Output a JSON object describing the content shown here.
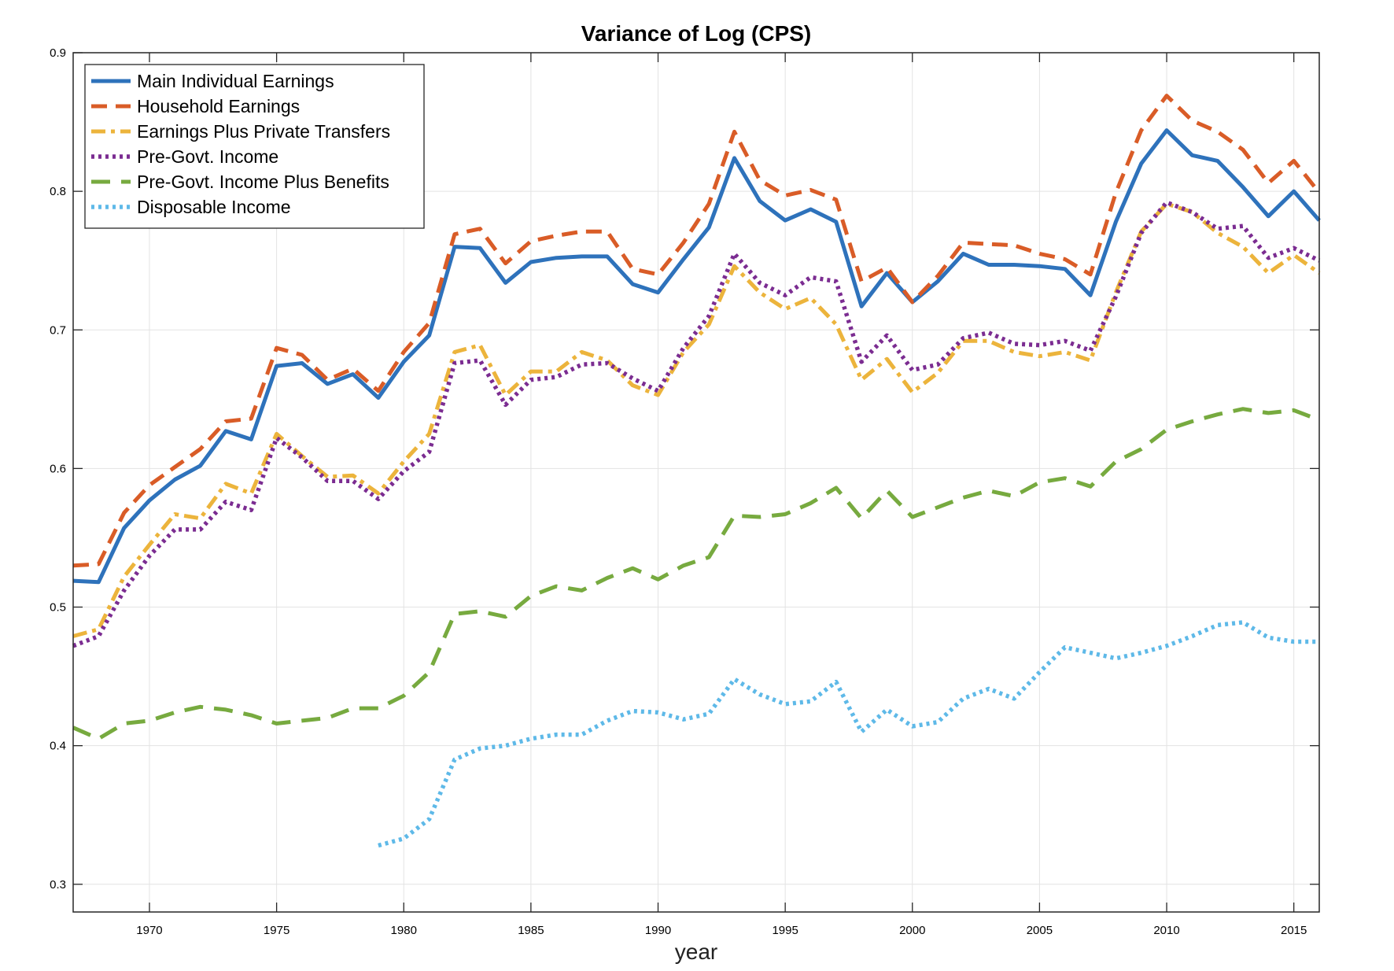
{
  "chart_data": {
    "type": "line",
    "title": "Variance of Log (CPS)",
    "xlabel": "year",
    "ylabel": "",
    "xlim": [
      1967,
      2016
    ],
    "ylim": [
      0.28,
      0.9
    ],
    "xticks": [
      1970,
      1975,
      1980,
      1985,
      1990,
      1995,
      2000,
      2005,
      2010,
      2015
    ],
    "yticks": [
      0.3,
      0.4,
      0.5,
      0.6,
      0.7,
      0.8,
      0.9
    ],
    "grid": true,
    "legend_position": "top-left",
    "series": [
      {
        "name": "Main Individual Earnings",
        "color": "#2e72bb",
        "style": "solid",
        "x": [
          1967,
          1968,
          1969,
          1970,
          1971,
          1972,
          1973,
          1974,
          1975,
          1976,
          1977,
          1978,
          1979,
          1980,
          1981,
          1982,
          1983,
          1984,
          1985,
          1986,
          1987,
          1988,
          1989,
          1990,
          1991,
          1992,
          1993,
          1994,
          1995,
          1996,
          1997,
          1998,
          1999,
          2000,
          2001,
          2002,
          2003,
          2004,
          2005,
          2006,
          2007,
          2008,
          2009,
          2010,
          2011,
          2012,
          2013,
          2014,
          2015,
          2016
        ],
        "y": [
          0.519,
          0.518,
          0.557,
          0.577,
          0.592,
          0.602,
          0.627,
          0.621,
          0.674,
          0.676,
          0.661,
          0.668,
          0.651,
          0.677,
          0.696,
          0.76,
          0.759,
          0.734,
          0.749,
          0.752,
          0.753,
          0.753,
          0.733,
          0.727,
          0.751,
          0.774,
          0.824,
          0.793,
          0.779,
          0.787,
          0.778,
          0.717,
          0.741,
          0.72,
          0.735,
          0.755,
          0.747,
          0.747,
          0.746,
          0.744,
          0.725,
          0.778,
          0.82,
          0.844,
          0.826,
          0.822,
          0.803,
          0.782,
          0.8,
          0.779
        ]
      },
      {
        "name": "Household Earnings",
        "color": "#d95c27",
        "style": "dashed",
        "x": [
          1967,
          1968,
          1969,
          1970,
          1971,
          1972,
          1973,
          1974,
          1975,
          1976,
          1977,
          1978,
          1979,
          1980,
          1981,
          1982,
          1983,
          1984,
          1985,
          1986,
          1987,
          1988,
          1989,
          1990,
          1991,
          1992,
          1993,
          1994,
          1995,
          1996,
          1997,
          1998,
          1999,
          2000,
          2001,
          2002,
          2003,
          2004,
          2005,
          2006,
          2007,
          2008,
          2009,
          2010,
          2011,
          2012,
          2013,
          2014,
          2015,
          2016
        ],
        "y": [
          0.53,
          0.531,
          0.568,
          0.588,
          0.601,
          0.614,
          0.634,
          0.636,
          0.687,
          0.682,
          0.664,
          0.672,
          0.656,
          0.684,
          0.705,
          0.769,
          0.773,
          0.748,
          0.764,
          0.768,
          0.771,
          0.771,
          0.744,
          0.74,
          0.763,
          0.791,
          0.843,
          0.808,
          0.797,
          0.801,
          0.794,
          0.735,
          0.745,
          0.72,
          0.739,
          0.763,
          0.762,
          0.761,
          0.755,
          0.751,
          0.74,
          0.799,
          0.844,
          0.869,
          0.851,
          0.843,
          0.83,
          0.806,
          0.822,
          0.799
        ]
      },
      {
        "name": "Earnings Plus Private Transfers",
        "color": "#ecb43c",
        "style": "dashdot",
        "x": [
          1967,
          1968,
          1969,
          1970,
          1971,
          1972,
          1973,
          1974,
          1975,
          1976,
          1977,
          1978,
          1979,
          1980,
          1981,
          1982,
          1983,
          1984,
          1985,
          1986,
          1987,
          1988,
          1989,
          1990,
          1991,
          1992,
          1993,
          1994,
          1995,
          1996,
          1997,
          1998,
          1999,
          2000,
          2001,
          2002,
          2003,
          2004,
          2005,
          2006,
          2007,
          2008,
          2009,
          2010,
          2011,
          2012,
          2013,
          2014,
          2015,
          2016
        ],
        "y": [
          0.479,
          0.484,
          0.522,
          0.545,
          0.567,
          0.564,
          0.589,
          0.582,
          0.625,
          0.609,
          0.594,
          0.595,
          0.582,
          0.605,
          0.625,
          0.684,
          0.689,
          0.653,
          0.67,
          0.67,
          0.684,
          0.678,
          0.66,
          0.653,
          0.684,
          0.704,
          0.746,
          0.727,
          0.715,
          0.723,
          0.704,
          0.664,
          0.679,
          0.655,
          0.669,
          0.692,
          0.692,
          0.684,
          0.681,
          0.684,
          0.678,
          0.727,
          0.771,
          0.791,
          0.785,
          0.77,
          0.76,
          0.741,
          0.754,
          0.741
        ]
      },
      {
        "name": "Pre-Govt. Income",
        "color": "#7b2c91",
        "style": "dotted",
        "x": [
          1967,
          1968,
          1969,
          1970,
          1971,
          1972,
          1973,
          1974,
          1975,
          1976,
          1977,
          1978,
          1979,
          1980,
          1981,
          1982,
          1983,
          1984,
          1985,
          1986,
          1987,
          1988,
          1989,
          1990,
          1991,
          1992,
          1993,
          1994,
          1995,
          1996,
          1997,
          1998,
          1999,
          2000,
          2001,
          2002,
          2003,
          2004,
          2005,
          2006,
          2007,
          2008,
          2009,
          2010,
          2011,
          2012,
          2013,
          2014,
          2015,
          2016
        ],
        "y": [
          0.472,
          0.479,
          0.512,
          0.537,
          0.556,
          0.556,
          0.576,
          0.57,
          0.622,
          0.608,
          0.591,
          0.591,
          0.578,
          0.598,
          0.612,
          0.676,
          0.678,
          0.646,
          0.664,
          0.666,
          0.675,
          0.676,
          0.665,
          0.656,
          0.687,
          0.71,
          0.755,
          0.734,
          0.725,
          0.738,
          0.735,
          0.677,
          0.696,
          0.671,
          0.675,
          0.694,
          0.698,
          0.69,
          0.689,
          0.692,
          0.685,
          0.724,
          0.77,
          0.792,
          0.785,
          0.773,
          0.775,
          0.752,
          0.759,
          0.75
        ]
      },
      {
        "name": "Pre-Govt. Income Plus Benefits",
        "color": "#77aa3f",
        "style": "longdash",
        "x": [
          1967,
          1968,
          1969,
          1970,
          1971,
          1972,
          1973,
          1974,
          1975,
          1976,
          1977,
          1978,
          1979,
          1980,
          1981,
          1982,
          1983,
          1984,
          1985,
          1986,
          1987,
          1988,
          1989,
          1990,
          1991,
          1992,
          1993,
          1994,
          1995,
          1996,
          1997,
          1998,
          1999,
          2000,
          2001,
          2002,
          2003,
          2004,
          2005,
          2006,
          2007,
          2008,
          2009,
          2010,
          2011,
          2012,
          2013,
          2014,
          2015,
          2016
        ],
        "y": [
          0.413,
          0.405,
          0.416,
          0.418,
          0.424,
          0.428,
          0.426,
          0.422,
          0.416,
          0.418,
          0.42,
          0.427,
          0.427,
          0.436,
          0.453,
          0.495,
          0.497,
          0.493,
          0.508,
          0.515,
          0.512,
          0.521,
          0.528,
          0.52,
          0.53,
          0.536,
          0.566,
          0.565,
          0.567,
          0.575,
          0.586,
          0.564,
          0.584,
          0.565,
          0.572,
          0.579,
          0.584,
          0.58,
          0.59,
          0.593,
          0.587,
          0.605,
          0.614,
          0.628,
          0.634,
          0.639,
          0.643,
          0.64,
          0.642,
          0.635
        ]
      },
      {
        "name": "Disposable Income",
        "color": "#5eb9e8",
        "style": "dotted",
        "x": [
          1979,
          1980,
          1981,
          1982,
          1983,
          1984,
          1985,
          1986,
          1987,
          1988,
          1989,
          1990,
          1991,
          1992,
          1993,
          1994,
          1995,
          1996,
          1997,
          1998,
          1999,
          2000,
          2001,
          2002,
          2003,
          2004,
          2005,
          2006,
          2007,
          2008,
          2009,
          2010,
          2011,
          2012,
          2013,
          2014,
          2015,
          2016
        ],
        "y": [
          0.328,
          0.333,
          0.347,
          0.39,
          0.398,
          0.4,
          0.405,
          0.408,
          0.408,
          0.418,
          0.425,
          0.424,
          0.419,
          0.423,
          0.448,
          0.437,
          0.43,
          0.432,
          0.446,
          0.41,
          0.426,
          0.414,
          0.417,
          0.434,
          0.441,
          0.434,
          0.453,
          0.471,
          0.467,
          0.463,
          0.467,
          0.472,
          0.479,
          0.487,
          0.489,
          0.478,
          0.475,
          0.475
        ]
      }
    ]
  }
}
